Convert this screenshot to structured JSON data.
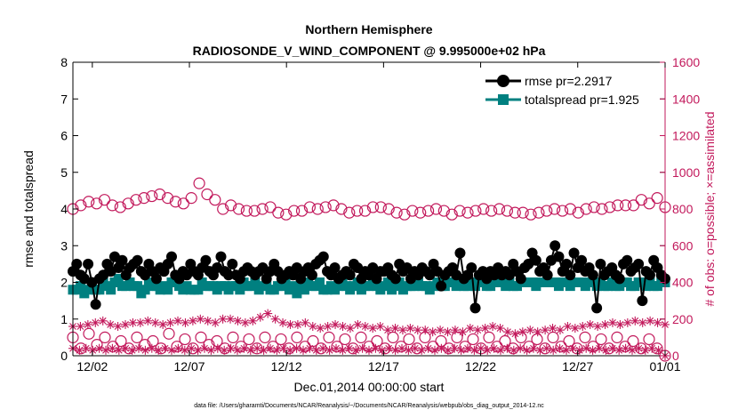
{
  "chart_data": {
    "type": "line",
    "title": "Northern Hemisphere",
    "subtitle": "RADIOSONDE_V_WIND_COMPONENT @ 9.995000e+02 hPa",
    "xlabel": "Dec.01,2014 00:00:00 start",
    "ylabel_left": "rmse and totalspread",
    "ylabel_right": "# of obs: o=possible; ×=assimilated",
    "footnote": "data file: /Users/gharamti/Documents/NCAR/Reanalysis/~/Documents/NCAR/Reanalysis/webpub/obs_diag_output_2014-12.nc",
    "xlim": [
      0.5,
      31.0
    ],
    "x_ticks": [
      {
        "x": 1.5,
        "label": "12/02"
      },
      {
        "x": 6.5,
        "label": "12/07"
      },
      {
        "x": 11.5,
        "label": "12/12"
      },
      {
        "x": 16.5,
        "label": "12/17"
      },
      {
        "x": 21.5,
        "label": "12/22"
      },
      {
        "x": 26.5,
        "label": "12/27"
      },
      {
        "x": 31.0,
        "label": "01/01"
      }
    ],
    "ylim_left": [
      0,
      8
    ],
    "yticks_left": [
      "0",
      "1",
      "2",
      "3",
      "4",
      "5",
      "6",
      "7",
      "8"
    ],
    "ylim_right": [
      0,
      1600
    ],
    "yticks_right": [
      "0",
      "200",
      "400",
      "600",
      "800",
      "1000",
      "1200",
      "1400",
      "1600"
    ],
    "legend": [
      {
        "name": "rmse pr=2.2917",
        "color": "#000000",
        "marker": "circle"
      },
      {
        "name": "totalspread pr=1.925",
        "color": "#008080",
        "marker": "square"
      }
    ],
    "colors": {
      "rmse": "#000000",
      "totalspread": "#008080",
      "obs": "#c2185b"
    },
    "x_step_days": 0.25,
    "x_start_day": 0.5,
    "series": [
      {
        "name": "rmse",
        "axis": "left",
        "values": [
          2.3,
          2.5,
          2.2,
          2.1,
          2.5,
          2.0,
          1.4,
          2.1,
          2.2,
          2.5,
          2.3,
          2.7,
          2.4,
          2.6,
          2.2,
          2.4,
          2.5,
          2.6,
          2.3,
          2.2,
          2.5,
          2.3,
          2.1,
          2.4,
          2.3,
          2.5,
          2.7,
          2.2,
          2.1,
          2.3,
          2.2,
          2.5,
          2.3,
          2.2,
          2.4,
          2.6,
          2.3,
          2.2,
          2.4,
          2.7,
          2.3,
          2.2,
          2.5,
          2.2,
          2.1,
          2.3,
          2.4,
          2.3,
          2.2,
          2.3,
          2.4,
          2.1,
          2.3,
          2.5,
          2.3,
          2.1,
          2.2,
          2.3,
          2.2,
          2.4,
          2.1,
          2.3,
          2.4,
          2.2,
          2.5,
          2.6,
          2.7,
          2.3,
          2.2,
          2.4,
          2.1,
          2.2,
          2.3,
          2.2,
          2.5,
          2.4,
          2.1,
          2.3,
          2.2,
          2.4,
          2.1,
          2.3,
          2.3,
          2.4,
          2.2,
          2.1,
          2.5,
          2.3,
          2.4,
          2.1,
          2.3,
          2.2,
          2.4,
          2.3,
          2.2,
          2.5,
          2.3,
          1.9,
          2.2,
          2.3,
          2.4,
          2.2,
          2.8,
          2.1,
          2.2,
          2.4,
          1.3,
          2.2,
          2.3,
          2.1,
          2.3,
          2.2,
          2.4,
          2.2,
          2.3,
          2.2,
          2.5,
          2.3,
          2.1,
          2.4,
          2.5,
          2.8,
          2.6,
          2.3,
          2.4,
          2.2,
          2.6,
          3.0,
          2.7,
          2.3,
          2.5,
          2.2,
          2.8,
          2.4,
          2.6,
          2.3,
          2.4,
          2.2,
          1.3,
          2.5,
          2.2,
          2.3,
          2.4,
          2.2,
          2.1,
          2.5,
          2.6,
          2.3,
          2.4,
          2.5,
          1.5,
          2.3,
          2.2,
          2.6,
          2.4,
          2.2,
          2.1
        ]
      },
      {
        "name": "totalspread",
        "axis": "left",
        "values": [
          1.8,
          1.8,
          1.9,
          1.7,
          1.8,
          1.9,
          1.8,
          1.8,
          2.0,
          1.9,
          1.8,
          2.0,
          2.1,
          1.9,
          1.9,
          2.0,
          1.9,
          1.9,
          1.7,
          1.8,
          2.0,
          1.9,
          1.9,
          1.8,
          1.9,
          1.8,
          2.0,
          2.1,
          1.9,
          1.8,
          1.9,
          1.8,
          1.8,
          1.8,
          2.0,
          1.9,
          1.9,
          1.9,
          1.8,
          1.9,
          1.9,
          1.8,
          1.9,
          1.9,
          1.8,
          2.0,
          1.9,
          1.9,
          2.0,
          1.8,
          1.9,
          2.0,
          1.8,
          1.8,
          1.9,
          1.9,
          2.0,
          1.8,
          1.9,
          1.7,
          1.9,
          1.8,
          2.0,
          1.9,
          1.9,
          2.0,
          1.8,
          1.8,
          1.9,
          1.8,
          1.9,
          2.0,
          1.9,
          1.8,
          1.9,
          2.0,
          1.8,
          1.9,
          1.9,
          2.0,
          1.9,
          1.8,
          1.9,
          2.0,
          1.8,
          1.9,
          2.0,
          1.8,
          1.9,
          1.9,
          1.9,
          2.0,
          1.9,
          1.9,
          1.8,
          1.9,
          2.0,
          1.9,
          1.9,
          2.0,
          2.0,
          1.9,
          2.0,
          1.9,
          1.9,
          2.0,
          1.9,
          2.0,
          2.0,
          1.9,
          1.9,
          2.0,
          2.0,
          2.0,
          1.9,
          2.0,
          1.9,
          1.9,
          2.0,
          2.0,
          2.0,
          2.0,
          1.9,
          2.0,
          2.0,
          2.0,
          2.0,
          2.0,
          1.9,
          2.0,
          2.0,
          1.9,
          2.0,
          2.0,
          2.0,
          1.9,
          2.0,
          2.0,
          1.9,
          2.0,
          1.9,
          1.9,
          2.0,
          1.9,
          1.9,
          2.0,
          2.0,
          1.9,
          1.9,
          2.0,
          2.0,
          1.9,
          2.0,
          1.9,
          1.9,
          2.0,
          2.0
        ]
      },
      {
        "name": "obs_possible_upper",
        "axis": "right",
        "marker": "open-circle",
        "values": [
          800,
          820,
          840,
          830,
          850,
          820,
          810,
          830,
          850,
          860,
          870,
          880,
          860,
          840,
          830,
          860,
          940,
          880,
          850,
          800,
          820,
          800,
          790,
          790,
          800,
          810,
          780,
          770,
          790,
          790,
          810,
          800,
          810,
          820,
          800,
          780,
          790,
          790,
          810,
          810,
          800,
          780,
          770,
          790,
          780,
          790,
          800,
          790,
          770,
          790,
          780,
          790,
          800,
          790,
          800,
          790,
          780,
          780,
          770,
          780,
          790,
          800,
          790,
          800,
          780,
          800,
          810,
          800,
          810,
          820,
          820,
          820,
          850,
          830,
          860,
          810
        ]
      },
      {
        "name": "obs_possible_lower",
        "axis": "right",
        "marker": "open-circle",
        "values": [
          100,
          40,
          120,
          60,
          100,
          50,
          80,
          40,
          100,
          60,
          80,
          40,
          120,
          50,
          90,
          40,
          100,
          60,
          80,
          40,
          100,
          50,
          90,
          40,
          100,
          50,
          90,
          40,
          100,
          50,
          80,
          40,
          100,
          50,
          90,
          40,
          100,
          50,
          80,
          40,
          100,
          50,
          90,
          40,
          100,
          50,
          80,
          40,
          100,
          50,
          90,
          40,
          100,
          50,
          80,
          40,
          100,
          50,
          90,
          40,
          100,
          50,
          80,
          40,
          100,
          50,
          90,
          40,
          100,
          50,
          80,
          40,
          90,
          40,
          0
        ]
      },
      {
        "name": "obs_assimilated_upper",
        "axis": "right",
        "marker": "asterisk",
        "values": [
          160,
          160,
          170,
          180,
          190,
          170,
          160,
          170,
          180,
          180,
          190,
          180,
          170,
          180,
          190,
          180,
          190,
          200,
          190,
          180,
          200,
          200,
          190,
          180,
          190,
          210,
          230,
          200,
          180,
          170,
          170,
          180,
          160,
          150,
          160,
          170,
          160,
          150,
          170,
          160,
          150,
          160,
          140,
          150,
          140,
          150,
          140,
          140,
          130,
          140,
          130,
          140,
          130,
          150,
          140,
          150,
          160,
          150,
          130,
          120,
          130,
          140,
          130,
          140,
          150,
          140,
          160,
          150,
          160,
          170,
          160,
          170,
          180,
          170,
          180,
          190,
          180,
          190,
          180,
          170
        ]
      },
      {
        "name": "obs_assimilated_lower",
        "axis": "right",
        "marker": "asterisk",
        "values": [
          40,
          30,
          40,
          30,
          40,
          30,
          40,
          30,
          40,
          30,
          40,
          30,
          40,
          30,
          40,
          30,
          40,
          30,
          40,
          30,
          40,
          30,
          40,
          30,
          40,
          30,
          40,
          30,
          40,
          30,
          40,
          30,
          40,
          30,
          40,
          30,
          40,
          30,
          40,
          30,
          40,
          30,
          40,
          30,
          40,
          30,
          40,
          30,
          40,
          30,
          40,
          30,
          40,
          30,
          40,
          30,
          40,
          30,
          40,
          30,
          40,
          30,
          40,
          30,
          40,
          30,
          40,
          30,
          40,
          30,
          40,
          30,
          40,
          30,
          40,
          30,
          40,
          30,
          40,
          30,
          40,
          30,
          40,
          30,
          40,
          30,
          40,
          30,
          40,
          30,
          0
        ]
      }
    ]
  }
}
